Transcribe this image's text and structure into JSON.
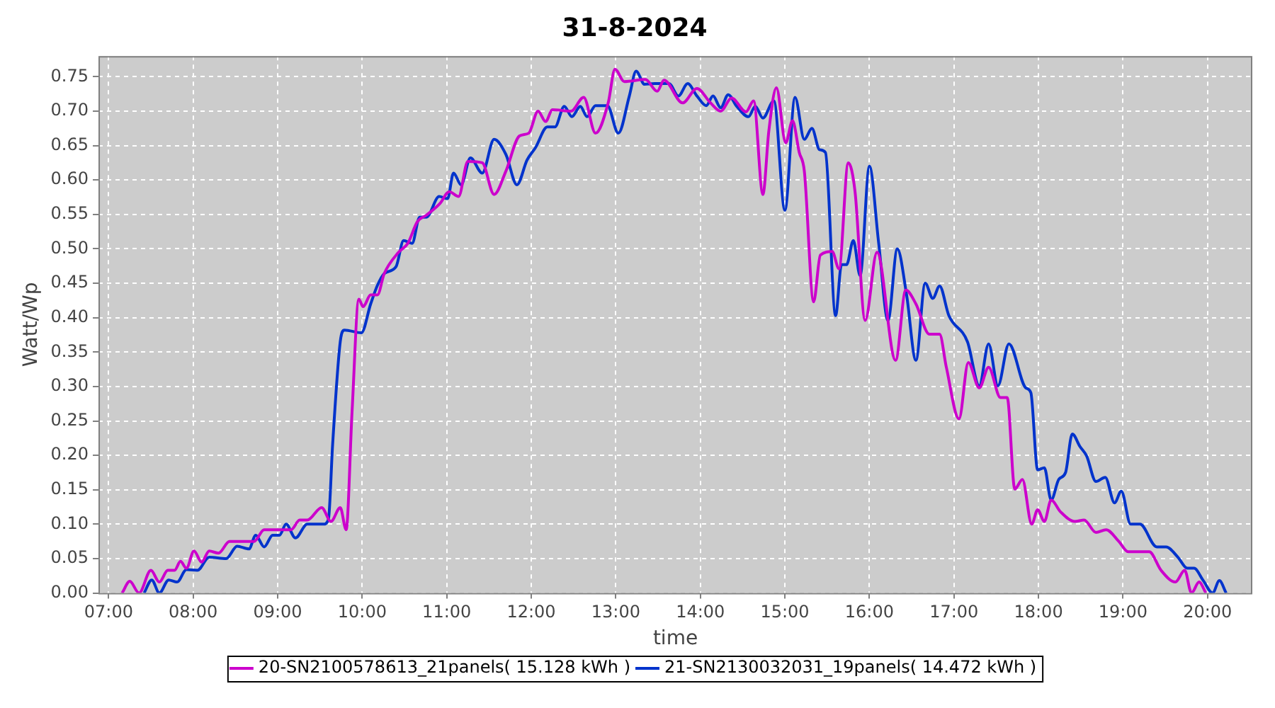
{
  "chart_data": {
    "type": "line",
    "title": "31-8-2024",
    "xlabel": "time",
    "ylabel": "Watt/Wp",
    "xlim": [
      6.88,
      20.53
    ],
    "xticks": [
      {
        "value": 7,
        "label": "07:00"
      },
      {
        "value": 8,
        "label": "08:00"
      },
      {
        "value": 9,
        "label": "09:00"
      },
      {
        "value": 10,
        "label": "10:00"
      },
      {
        "value": 11,
        "label": "11:00"
      },
      {
        "value": 12,
        "label": "12:00"
      },
      {
        "value": 13,
        "label": "13:00"
      },
      {
        "value": 14,
        "label": "14:00"
      },
      {
        "value": 15,
        "label": "15:00"
      },
      {
        "value": 16,
        "label": "16:00"
      },
      {
        "value": 17,
        "label": "17:00"
      },
      {
        "value": 18,
        "label": "18:00"
      },
      {
        "value": 19,
        "label": "19:00"
      },
      {
        "value": 20,
        "label": "20:00"
      }
    ],
    "ylim": [
      0,
      0.78
    ],
    "yticks": [
      {
        "value": 0,
        "label": "0.00"
      },
      {
        "value": 0.05,
        "label": "0.05"
      },
      {
        "value": 0.1,
        "label": "0.10"
      },
      {
        "value": 0.15,
        "label": "0.15"
      },
      {
        "value": 0.2,
        "label": "0.20"
      },
      {
        "value": 0.25,
        "label": "0.25"
      },
      {
        "value": 0.3,
        "label": "0.30"
      },
      {
        "value": 0.35,
        "label": "0.35"
      },
      {
        "value": 0.4,
        "label": "0.40"
      },
      {
        "value": 0.45,
        "label": "0.45"
      },
      {
        "value": 0.5,
        "label": "0.50"
      },
      {
        "value": 0.55,
        "label": "0.55"
      },
      {
        "value": 0.6,
        "label": "0.60"
      },
      {
        "value": 0.65,
        "label": "0.65"
      },
      {
        "value": 0.7,
        "label": "0.70"
      },
      {
        "value": 0.75,
        "label": "0.75"
      }
    ],
    "grid": true,
    "legend": "bottom",
    "marker": "none",
    "line_style": "solid",
    "series": [
      {
        "name": "20-SN2100578613_21panels( 15.128 kWh )",
        "color": "#cc00cc",
        "x": [
          7.16,
          7.25,
          7.36,
          7.5,
          7.6,
          7.7,
          7.78,
          7.85,
          7.92,
          8.01,
          8.1,
          8.19,
          8.3,
          8.43,
          8.72,
          8.84,
          9.16,
          9.26,
          9.35,
          9.52,
          9.63,
          9.74,
          9.81,
          9.88,
          9.96,
          10.01,
          10.1,
          10.18,
          10.26,
          10.43,
          10.54,
          10.65,
          10.76,
          10.92,
          11.03,
          11.14,
          11.25,
          11.42,
          11.56,
          11.7,
          11.86,
          11.97,
          12.08,
          12.17,
          12.25,
          12.47,
          12.62,
          12.76,
          12.91,
          12.99,
          13.1,
          13.35,
          13.49,
          13.57,
          13.79,
          13.96,
          14.12,
          14.24,
          14.37,
          14.54,
          14.63,
          14.74,
          14.81,
          14.9,
          15.01,
          15.09,
          15.17,
          15.23,
          15.34,
          15.42,
          15.56,
          15.64,
          15.75,
          15.83,
          15.95,
          16.09,
          16.31,
          16.43,
          16.55,
          16.71,
          16.83,
          16.91,
          17.06,
          17.17,
          17.3,
          17.41,
          17.55,
          17.63,
          17.72,
          17.81,
          17.92,
          17.99,
          18.07,
          18.15,
          18.26,
          18.43,
          18.54,
          18.68,
          18.8,
          18.95,
          19.06,
          19.31,
          19.45,
          19.62,
          19.73,
          19.81,
          19.9,
          19.98
        ],
        "values": [
          0,
          0.017,
          0,
          0.033,
          0.016,
          0.033,
          0.033,
          0.046,
          0.036,
          0.061,
          0.045,
          0.061,
          0.058,
          0.075,
          0.075,
          0.092,
          0.092,
          0.106,
          0.106,
          0.124,
          0.104,
          0.124,
          0.092,
          0.264,
          0.427,
          0.416,
          0.433,
          0.433,
          0.464,
          0.495,
          0.508,
          0.539,
          0.549,
          0.566,
          0.583,
          0.576,
          0.627,
          0.625,
          0.579,
          0.613,
          0.664,
          0.668,
          0.7,
          0.685,
          0.702,
          0.7,
          0.72,
          0.668,
          0.712,
          0.761,
          0.743,
          0.746,
          0.729,
          0.745,
          0.712,
          0.733,
          0.712,
          0.7,
          0.719,
          0.699,
          0.715,
          0.579,
          0.671,
          0.734,
          0.654,
          0.686,
          0.64,
          0.613,
          0.423,
          0.491,
          0.496,
          0.471,
          0.625,
          0.583,
          0.396,
          0.495,
          0.338,
          0.44,
          0.42,
          0.376,
          0.376,
          0.328,
          0.253,
          0.335,
          0.298,
          0.328,
          0.284,
          0.284,
          0.151,
          0.165,
          0.1,
          0.121,
          0.104,
          0.135,
          0.118,
          0.104,
          0.106,
          0.088,
          0.092,
          0.075,
          0.06,
          0.06,
          0.033,
          0.016,
          0.033,
          0,
          0.016,
          0
        ]
      },
      {
        "name": "21-SN2130032031_19panels( 14.472 kWh )",
        "color": "#0033cc",
        "x": [
          7.42,
          7.51,
          7.6,
          7.71,
          7.81,
          7.92,
          8.05,
          8.19,
          8.39,
          8.52,
          8.66,
          8.74,
          8.84,
          8.94,
          9.02,
          9.1,
          9.21,
          9.35,
          9.54,
          9.6,
          9.65,
          9.74,
          9.79,
          9.99,
          10.1,
          10.18,
          10.26,
          10.4,
          10.49,
          10.59,
          10.68,
          10.76,
          10.91,
          11.01,
          11.08,
          11.17,
          11.28,
          11.42,
          11.56,
          11.7,
          11.83,
          11.95,
          12.05,
          12.19,
          12.28,
          12.39,
          12.48,
          12.58,
          12.66,
          12.76,
          12.9,
          13.03,
          13.16,
          13.24,
          13.34,
          13.46,
          13.63,
          13.74,
          13.85,
          13.96,
          14.07,
          14.15,
          14.24,
          14.33,
          14.43,
          14.57,
          14.65,
          14.74,
          14.87,
          15.0,
          15.12,
          15.23,
          15.32,
          15.41,
          15.48,
          15.6,
          15.67,
          15.73,
          15.81,
          15.89,
          16.0,
          16.11,
          16.22,
          16.33,
          16.44,
          16.55,
          16.66,
          16.75,
          16.83,
          16.94,
          17.16,
          17.3,
          17.41,
          17.52,
          17.65,
          17.85,
          17.91,
          17.99,
          18.07,
          18.15,
          18.24,
          18.32,
          18.4,
          18.49,
          18.57,
          18.68,
          18.79,
          18.9,
          18.98,
          19.09,
          19.2,
          19.4,
          19.51,
          19.65,
          19.76,
          19.84,
          19.95,
          20.06,
          20.14,
          20.22
        ],
        "values": [
          0,
          0.019,
          0,
          0.019,
          0.016,
          0.034,
          0.033,
          0.052,
          0.05,
          0.068,
          0.064,
          0.084,
          0.067,
          0.084,
          0.084,
          0.1,
          0.08,
          0.1,
          0.1,
          0.107,
          0.216,
          0.365,
          0.382,
          0.378,
          0.42,
          0.447,
          0.464,
          0.474,
          0.512,
          0.508,
          0.546,
          0.546,
          0.576,
          0.573,
          0.61,
          0.593,
          0.632,
          0.61,
          0.659,
          0.637,
          0.593,
          0.629,
          0.647,
          0.677,
          0.677,
          0.707,
          0.692,
          0.707,
          0.692,
          0.708,
          0.708,
          0.668,
          0.722,
          0.758,
          0.739,
          0.74,
          0.74,
          0.722,
          0.74,
          0.722,
          0.708,
          0.722,
          0.705,
          0.724,
          0.707,
          0.692,
          0.707,
          0.69,
          0.715,
          0.556,
          0.72,
          0.659,
          0.675,
          0.644,
          0.64,
          0.403,
          0.477,
          0.477,
          0.512,
          0.461,
          0.62,
          0.508,
          0.396,
          0.5,
          0.433,
          0.338,
          0.45,
          0.428,
          0.446,
          0.403,
          0.365,
          0.301,
          0.362,
          0.301,
          0.362,
          0.298,
          0.291,
          0.179,
          0.182,
          0.135,
          0.165,
          0.175,
          0.231,
          0.213,
          0.199,
          0.162,
          0.168,
          0.131,
          0.148,
          0.1,
          0.1,
          0.067,
          0.067,
          0.052,
          0.036,
          0.036,
          0.018,
          0,
          0.018,
          0
        ]
      }
    ]
  }
}
